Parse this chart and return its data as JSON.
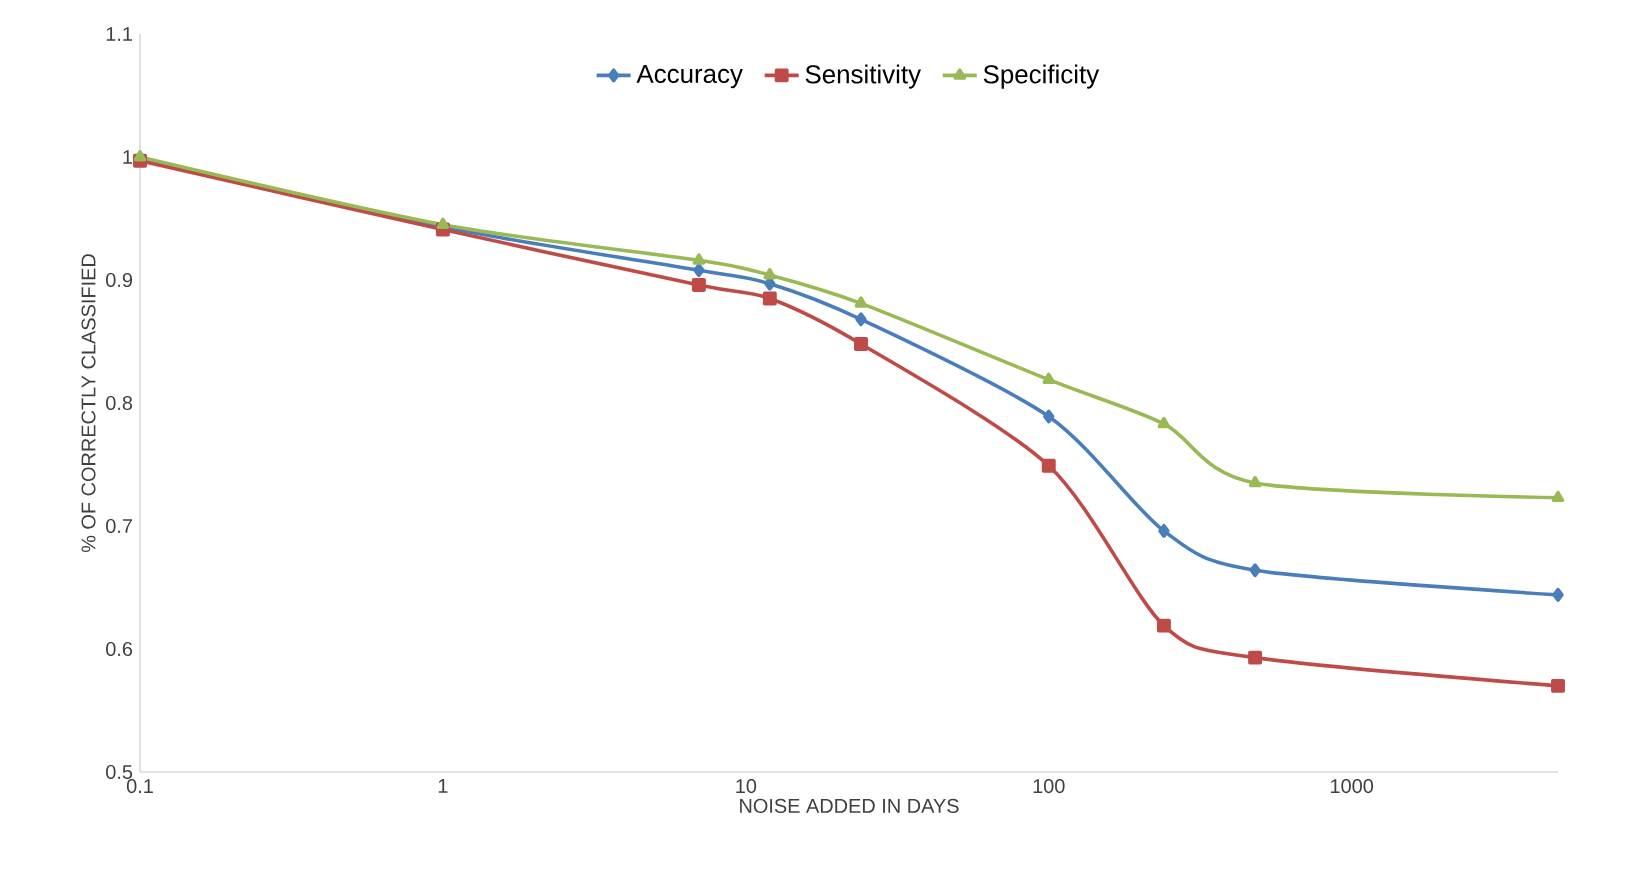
{
  "chart_data": {
    "type": "line",
    "xlabel": "NOISE ADDED IN DAYS",
    "ylabel": "% OF CORRECTLY CLASSIFIED",
    "log": "x",
    "legend": "top",
    "x": [
      0.1,
      1,
      7,
      12,
      24,
      100,
      240,
      480,
      4800
    ],
    "series": [
      {
        "name": "Accuracy",
        "color": "#4a7ebb",
        "marker": "diamond",
        "values": [
          0.999,
          0.943,
          0.908,
          0.897,
          0.868,
          0.789,
          0.696,
          0.664,
          0.644
        ]
      },
      {
        "name": "Sensitivity",
        "color": "#be4b48",
        "marker": "square",
        "values": [
          0.997,
          0.941,
          0.896,
          0.885,
          0.848,
          0.749,
          0.619,
          0.593,
          0.57
        ]
      },
      {
        "name": "Specificity",
        "color": "#98b954",
        "marker": "triangle",
        "values": [
          1.0,
          0.945,
          0.916,
          0.904,
          0.881,
          0.819,
          0.783,
          0.735,
          0.723
        ]
      }
    ],
    "xlim": [
      0.1,
      4800
    ],
    "ylim": [
      0.5,
      1.1
    ],
    "xticks": [
      0.1,
      1,
      10,
      100,
      1000
    ],
    "yticks": [
      0.5,
      0.6,
      0.7,
      0.8,
      0.9,
      1,
      1.1
    ]
  }
}
